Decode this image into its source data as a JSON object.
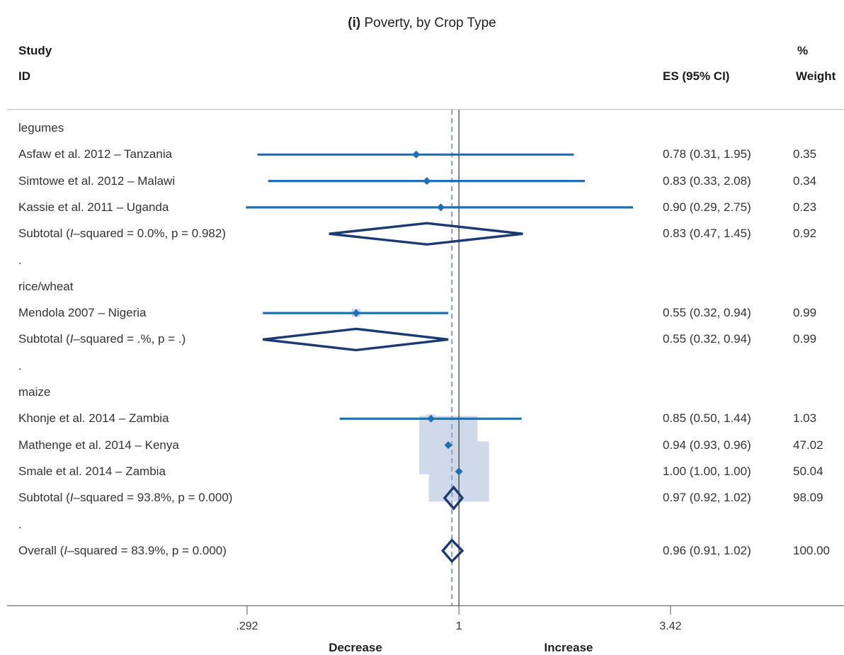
{
  "header": {
    "title_prefix": "(i)",
    "title_text": "Poverty, by Crop Type",
    "col_study": "Study",
    "col_id": "ID",
    "col_es": "ES (95% CI)",
    "col_pct": "%",
    "col_weight": "Weight"
  },
  "colors": {
    "ci_line": "#1f6fb4",
    "point": "#1f6fb4",
    "weight_box": "#cfd9ea",
    "diamond": "#1b3a73",
    "null_line": "#333333",
    "overall_line": "#9aa9c6"
  },
  "chart_data": {
    "type": "forest",
    "scale": "log",
    "xticks": [
      {
        "value": 0.292,
        "label": ".292"
      },
      {
        "value": 1,
        "label": "1"
      },
      {
        "value": 3.42,
        "label": "3.42"
      }
    ],
    "xlim": [
      0.292,
      3.42
    ],
    "null_value": 1,
    "overall_effect": 0.96,
    "direction_left": "Decrease",
    "direction_right": "Increase",
    "rows": [
      {
        "kind": "group",
        "label": "legumes"
      },
      {
        "kind": "study",
        "label": "Asfaw et al. 2012 – Tanzania",
        "es": 0.78,
        "lo": 0.31,
        "hi": 1.95,
        "es_text": "0.78 (0.31, 1.95)",
        "weight": "0.35",
        "w": 0.35
      },
      {
        "kind": "study",
        "label": "Simtowe et al. 2012 – Malawi",
        "es": 0.83,
        "lo": 0.33,
        "hi": 2.08,
        "es_text": "0.83 (0.33, 2.08)",
        "weight": "0.34",
        "w": 0.34
      },
      {
        "kind": "study",
        "label": "Kassie et al. 2011 – Uganda",
        "es": 0.9,
        "lo": 0.29,
        "hi": 2.75,
        "es_text": "0.90 (0.29, 2.75)",
        "weight": "0.23",
        "w": 0.23
      },
      {
        "kind": "subtotal",
        "label_pre": "Subtotal  (",
        "label_i": "I",
        "label_post": "–squared = 0.0%, p = 0.982)",
        "es": 0.83,
        "lo": 0.47,
        "hi": 1.45,
        "es_text": "0.83 (0.47, 1.45)",
        "weight": "0.92"
      },
      {
        "kind": "spacer",
        "label": "."
      },
      {
        "kind": "group",
        "label": "rice/wheat"
      },
      {
        "kind": "study",
        "label": "Mendola 2007 – Nigeria",
        "es": 0.55,
        "lo": 0.32,
        "hi": 0.94,
        "es_text": "0.55 (0.32, 0.94)",
        "weight": "0.99",
        "w": 0.99
      },
      {
        "kind": "subtotal",
        "label_pre": "Subtotal  (",
        "label_i": "I",
        "label_post": "–squared = .%, p = .)",
        "es": 0.55,
        "lo": 0.32,
        "hi": 0.94,
        "es_text": "0.55 (0.32, 0.94)",
        "weight": "0.99"
      },
      {
        "kind": "spacer",
        "label": "."
      },
      {
        "kind": "group",
        "label": "maize"
      },
      {
        "kind": "study",
        "label": "Khonje et al. 2014 – Zambia",
        "es": 0.85,
        "lo": 0.5,
        "hi": 1.44,
        "es_text": "0.85 (0.50, 1.44)",
        "weight": "1.03",
        "w": 1.03
      },
      {
        "kind": "study",
        "label": "Mathenge et al. 2014 – Kenya",
        "es": 0.94,
        "lo": 0.93,
        "hi": 0.96,
        "es_text": "0.94 (0.93, 0.96)",
        "weight": "47.02",
        "w": 47.02
      },
      {
        "kind": "study",
        "label": "Smale et al. 2014 – Zambia",
        "es": 1.0,
        "lo": 1.0,
        "hi": 1.0,
        "es_text": "1.00 (1.00, 1.00)",
        "weight": "50.04",
        "w": 50.04
      },
      {
        "kind": "subtotal",
        "label_pre": "Subtotal  (",
        "label_i": "I",
        "label_post": "–squared = 93.8%, p = 0.000)",
        "es": 0.97,
        "lo": 0.92,
        "hi": 1.02,
        "es_text": "0.97 (0.92, 1.02)",
        "weight": "98.09"
      },
      {
        "kind": "spacer",
        "label": "."
      },
      {
        "kind": "overall",
        "label_pre": "Overall  (",
        "label_i": "I",
        "label_post": "–squared = 83.9%, p = 0.000)",
        "es": 0.96,
        "lo": 0.91,
        "hi": 1.02,
        "es_text": "0.96 (0.91, 1.02)",
        "weight": "100.00"
      }
    ]
  }
}
